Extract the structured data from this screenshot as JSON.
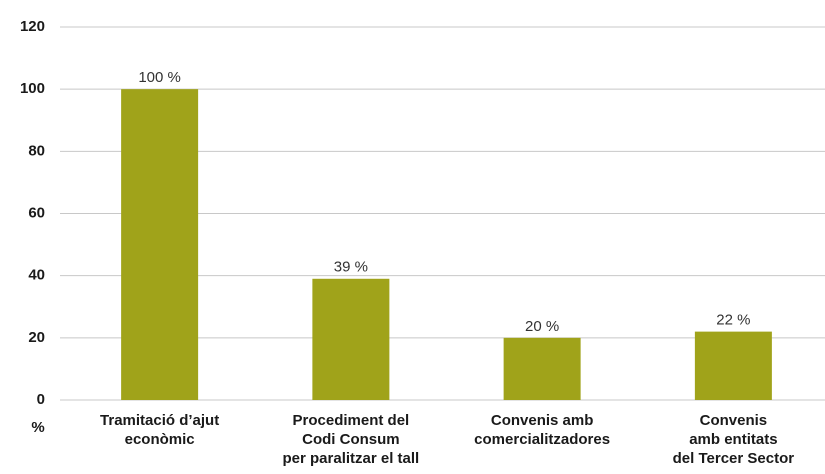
{
  "chart_data": {
    "type": "bar",
    "y_label": "%",
    "categories": [
      "Tramitació d’ajut\neconòmic",
      "Procediment del\nCodi Consum\nper paralitzar el tall",
      "Convenis amb\ncomercialitzadores",
      "Convenis\namb entitats\ndel Tercer Sector"
    ],
    "values": [
      100,
      39,
      20,
      22
    ],
    "value_labels": [
      "100 %",
      "39 %",
      "20 %",
      "22 %"
    ],
    "color": "#a0a31a",
    "ylim": [
      0,
      120
    ],
    "yticks": [
      0,
      20,
      40,
      60,
      80,
      100,
      120
    ],
    "grid": true
  }
}
